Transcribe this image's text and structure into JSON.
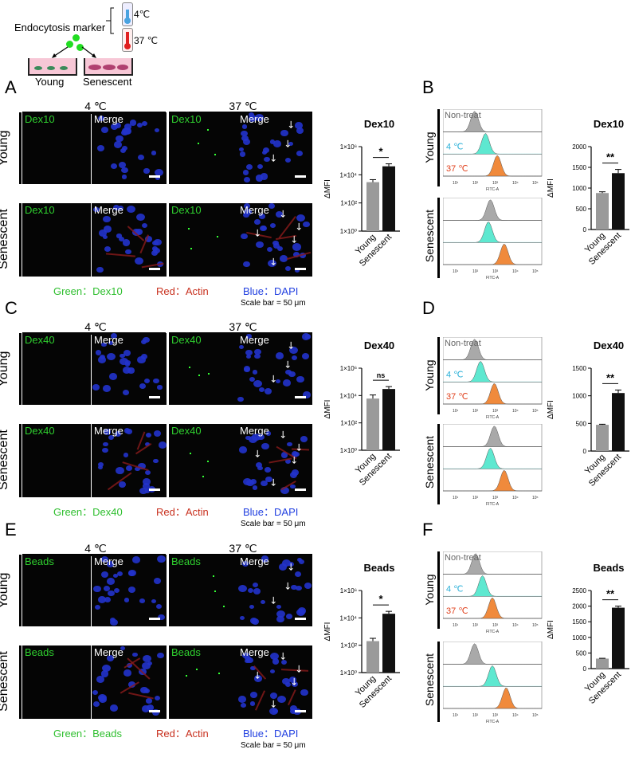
{
  "schematic": {
    "marker_label": "Endocytosis marker",
    "temp_cold": "4℃",
    "temp_warm": "37 ℃",
    "well_young": "Young",
    "well_senescent": "Senescent"
  },
  "panels": {
    "A": {
      "letter": "A",
      "marker": "Dex10",
      "merge": "Merge",
      "temp1": "4 ℃",
      "temp2": "37 ℃",
      "row1": "Young",
      "row2": "Senescent",
      "legend_green": "Green：Dex10",
      "legend_red": "Red：Actin",
      "legend_blue": "Blue：DAPI",
      "scale": "Scale bar = 50 μm"
    },
    "C": {
      "letter": "C",
      "marker": "Dex40",
      "merge": "Merge",
      "temp1": "4 ℃",
      "temp2": "37 ℃",
      "row1": "Young",
      "row2": "Senescent",
      "legend_green": "Green：Dex40",
      "legend_red": "Red：Actin",
      "legend_blue": "Blue：DAPI",
      "scale": "Scale bar = 50 μm"
    },
    "E": {
      "letter": "E",
      "marker": "Beads",
      "merge": "Merge",
      "temp1": "4 ℃",
      "temp2": "37 ℃",
      "row1": "Young",
      "row2": "Senescent",
      "legend_green": "Green：Beads",
      "legend_red": "Red：Actin",
      "legend_blue": "Blue：DAPI",
      "scale": "Scale bar = 50 μm"
    },
    "B": {
      "letter": "B",
      "row1": "Young",
      "row2": "Senescent",
      "nontreat": "Non-treat",
      "t4": "4 ℃",
      "t37": "37 ℃",
      "xaxis": "FITC-A"
    },
    "D": {
      "letter": "D",
      "row1": "Young",
      "row2": "Senescent",
      "nontreat": "Non-treat",
      "t4": "4 ℃",
      "t37": "37 ℃",
      "xaxis": "FITC-A"
    },
    "F": {
      "letter": "F",
      "row1": "Young",
      "row2": "Senescent",
      "nontreat": "Non-treat",
      "t4": "4 ℃",
      "t37": "37 ℃",
      "xaxis": "FITC-A"
    }
  },
  "flow_ticks": [
    "10¹",
    "10²",
    "10³",
    "10⁴",
    "10⁵"
  ],
  "colors": {
    "nontreat": "#a9a9a9",
    "cold": "#5ee8d0",
    "warm": "#f08a3c",
    "young_bar": "#9a9a9a",
    "sen_bar": "#111111",
    "label_blue": "#2ab0d8",
    "label_red": "#e0401c"
  },
  "chart_data": [
    {
      "id": "A",
      "type": "bar",
      "title": "Dex10",
      "ylabel": "ΔMFI",
      "scale": "log",
      "ylim": [
        1,
        1000000
      ],
      "ytick_labels": [
        "1×10⁰",
        "1×10²",
        "1×10⁴",
        "1×10⁶"
      ],
      "categories": [
        "Young",
        "Senescent"
      ],
      "values": [
        3000,
        40000
      ],
      "errors": [
        1500,
        20000
      ],
      "significance": "*"
    },
    {
      "id": "B",
      "type": "bar",
      "title": "Dex10",
      "ylabel": "ΔMFI",
      "scale": "linear",
      "ylim": [
        0,
        2000
      ],
      "ytick_labels": [
        "0",
        "500",
        "1000",
        "1500",
        "2000"
      ],
      "categories": [
        "Young",
        "Senescent"
      ],
      "values": [
        880,
        1360
      ],
      "errors": [
        30,
        90
      ],
      "significance": "**"
    },
    {
      "id": "C",
      "type": "bar",
      "title": "Dex40",
      "ylabel": "ΔMFI",
      "scale": "log",
      "ylim": [
        1,
        1000000
      ],
      "ytick_labels": [
        "1×10⁰",
        "1×10²",
        "1×10⁴",
        "1×10⁶"
      ],
      "categories": [
        "Young",
        "Senescent"
      ],
      "values": [
        6000,
        30000
      ],
      "errors": [
        5000,
        15000
      ],
      "significance": "ns"
    },
    {
      "id": "D",
      "type": "bar",
      "title": "Dex40",
      "ylabel": "ΔMFI",
      "scale": "linear",
      "ylim": [
        0,
        1500
      ],
      "ytick_labels": [
        "0",
        "500",
        "1000",
        "1500"
      ],
      "categories": [
        "Young",
        "Senescent"
      ],
      "values": [
        475,
        1050
      ],
      "errors": [
        10,
        55
      ],
      "significance": "**"
    },
    {
      "id": "E",
      "type": "bar",
      "title": "Beads",
      "ylabel": "ΔMFI",
      "scale": "log",
      "ylim": [
        1,
        1000000
      ],
      "ytick_labels": [
        "1×10⁰",
        "1×10²",
        "1×10⁴",
        "1×10⁶"
      ],
      "categories": [
        "Young",
        "Senescent"
      ],
      "values": [
        200,
        20000
      ],
      "errors": [
        120,
        10000
      ],
      "significance": "*"
    },
    {
      "id": "F",
      "type": "bar",
      "title": "Beads",
      "ylabel": "ΔMFI",
      "scale": "linear",
      "ylim": [
        0,
        2500
      ],
      "ytick_labels": [
        "0",
        "500",
        "1000",
        "1500",
        "2000",
        "2500"
      ],
      "categories": [
        "Young",
        "Senescent"
      ],
      "values": [
        320,
        1950
      ],
      "errors": [
        10,
        50
      ],
      "significance": "**"
    }
  ]
}
